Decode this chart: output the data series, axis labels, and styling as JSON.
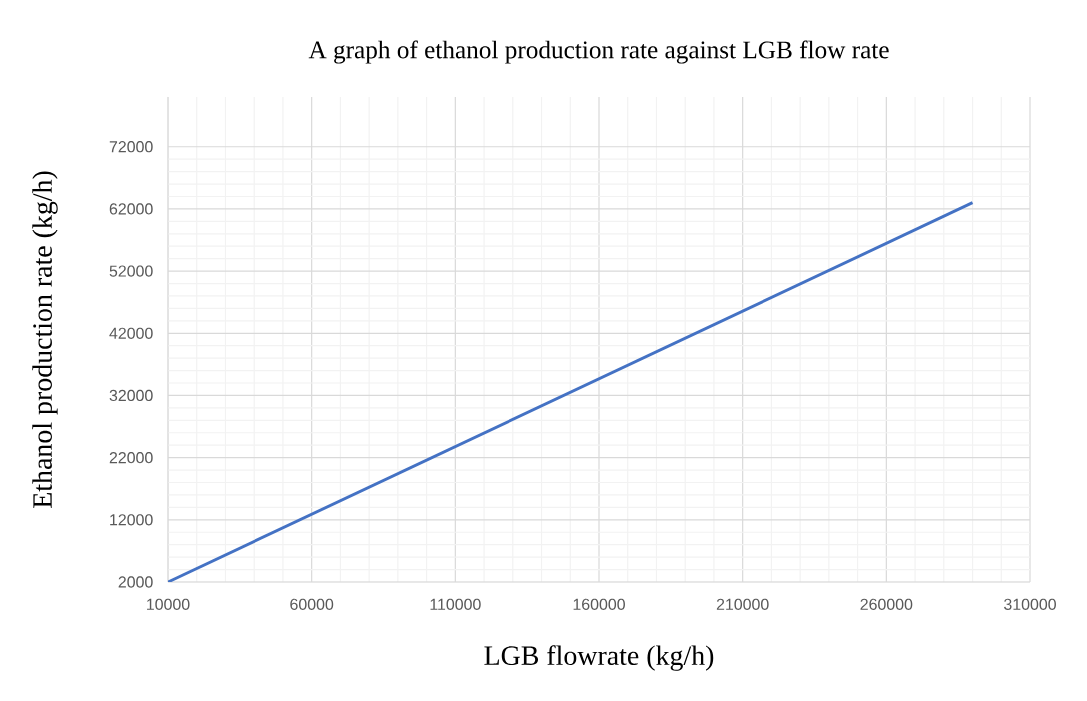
{
  "chart_data": {
    "type": "line",
    "title": "A graph of ethanol production rate against LGB flow rate",
    "xlabel": "LGB flowrate (kg/h)",
    "ylabel": "Ethanol production rate (kg/h)",
    "x": [
      10000,
      290000
    ],
    "series": [
      {
        "color": "#4472c4",
        "values": [
          2000,
          63000
        ]
      }
    ],
    "xlim": [
      10000,
      310000
    ],
    "xticks": [
      10000,
      60000,
      110000,
      160000,
      210000,
      260000,
      310000
    ],
    "ylim": [
      2000,
      80000
    ],
    "yticks": [
      2000,
      12000,
      22000,
      32000,
      42000,
      52000,
      62000,
      72000
    ],
    "grid": true,
    "marker": "none",
    "line_style": "solid"
  }
}
